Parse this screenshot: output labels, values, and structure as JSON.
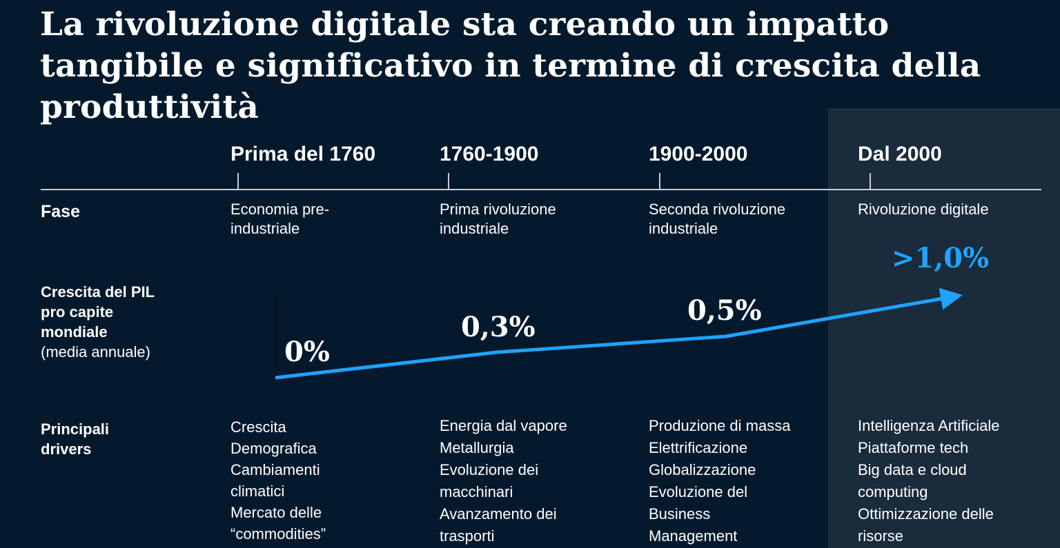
{
  "title": "La rivoluzione digitale sta creando un impatto tangibile e significativo in termine di crescita della produttività",
  "rows": {
    "phase": "Fase",
    "growth_main": "Crescita del PIL pro capite mondiale",
    "growth_sub": "(media annuale)",
    "drivers": "Principali drivers"
  },
  "periods": [
    {
      "label": "Prima del 1760",
      "phase": "Economia pre-industriale",
      "growth": "0%",
      "drivers": [
        "Crescita Demografica",
        "Cambiamenti climatici",
        "Mercato delle “commodities”"
      ]
    },
    {
      "label": "1760-1900",
      "phase": "Prima rivoluzione industriale",
      "growth": "0,3%",
      "drivers": [
        "Energia dal vapore",
        "Metallurgia",
        "Evoluzione dei macchinari",
        "Avanzamento dei trasporti"
      ]
    },
    {
      "label": "1900-2000",
      "phase": "Seconda rivoluzione industriale",
      "growth": "0,5%",
      "drivers": [
        "Produzione di massa",
        "Elettrificazione",
        "Globalizzazione",
        "Evoluzione del Business Management"
      ]
    },
    {
      "label": "Dal 2000",
      "phase": "Rivoluzione digitale",
      "growth": ">1,0%",
      "drivers": [
        "Intelligenza Artificiale",
        "Piattaforme tech",
        "Big data e cloud computing",
        "Ottimizzazione delle risorse"
      ]
    }
  ],
  "chart_data": {
    "type": "line",
    "categories": [
      "Prima del 1760",
      "1760-1900",
      "1900-2000",
      "Dal 2000"
    ],
    "values": [
      0,
      0.3,
      0.5,
      1.0
    ],
    "data_labels": [
      "0%",
      "0,3%",
      "0,5%",
      ">1,0%"
    ]
  },
  "colors": {
    "background": "#05192d",
    "highlight_panel": "#1a2b3c",
    "accent": "#1fa3ff",
    "text": "#ffffff"
  }
}
